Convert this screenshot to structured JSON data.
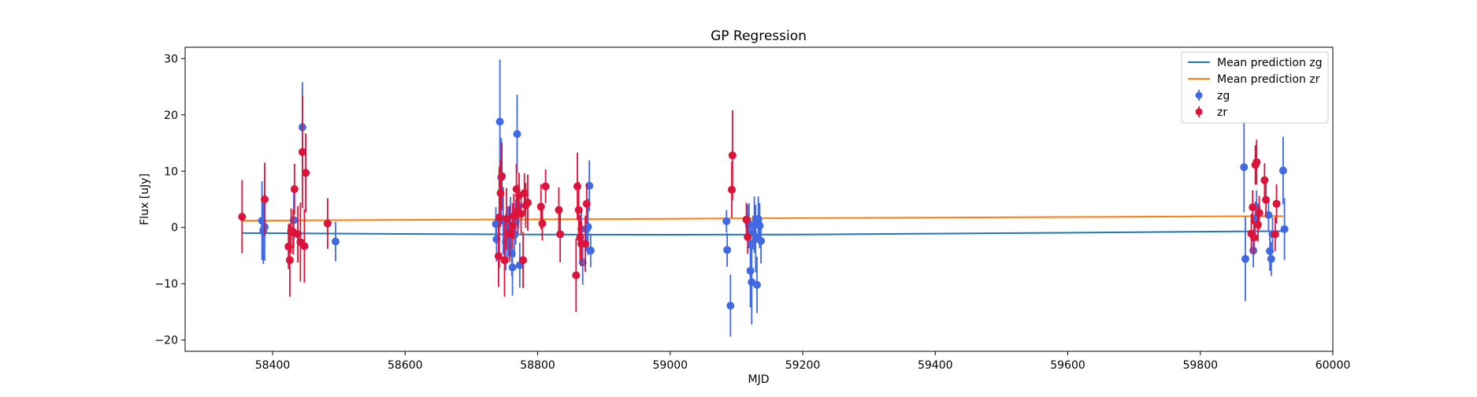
{
  "chart_data": {
    "type": "scatter",
    "title": "GP Regression",
    "xlabel": "MJD",
    "ylabel": "Flux [uJy]",
    "xlim": [
      58268,
      60000
    ],
    "ylim": [
      -22,
      32
    ],
    "xticks": [
      58400,
      58600,
      58800,
      59000,
      59200,
      59400,
      59600,
      59800,
      60000
    ],
    "yticks": [
      -20,
      -10,
      0,
      10,
      20,
      30
    ],
    "grid": false,
    "legend_position": "top-right",
    "lines": [
      {
        "name": "Mean prediction zg",
        "color": "#1f77b4",
        "x": [
          58354,
          58600,
          58800,
          59000,
          59200,
          59400,
          59600,
          59800,
          59925
        ],
        "y": [
          -1.0,
          -1.15,
          -1.25,
          -1.3,
          -1.25,
          -1.1,
          -0.95,
          -0.75,
          -0.65
        ]
      },
      {
        "name": "Mean prediction zr",
        "color": "#ff7f0e",
        "x": [
          58354,
          58600,
          58800,
          59000,
          59200,
          59400,
          59600,
          59800,
          59925
        ],
        "y": [
          1.2,
          1.35,
          1.45,
          1.55,
          1.65,
          1.75,
          1.85,
          1.95,
          2.0
        ]
      }
    ],
    "series": [
      {
        "name": "zg",
        "color": "#4169e1",
        "points": [
          [
            58384,
            1.2,
            7
          ],
          [
            58386,
            -0.5,
            6
          ],
          [
            58388,
            0.1,
            6
          ],
          [
            58432,
            1.3,
            5
          ],
          [
            58445,
            17.8,
            8
          ],
          [
            58495,
            -2.5,
            3.5
          ],
          [
            58737,
            0.6,
            3
          ],
          [
            58738,
            -2.1,
            4
          ],
          [
            58743,
            18.8,
            11
          ],
          [
            58745,
            8.9,
            7
          ],
          [
            58748,
            1.2,
            6
          ],
          [
            58752,
            -2.6,
            5
          ],
          [
            58755,
            -1.3,
            5
          ],
          [
            58757,
            -0.3,
            4
          ],
          [
            58759,
            0.4,
            5
          ],
          [
            58761,
            -4.6,
            4
          ],
          [
            58762,
            -7.1,
            5
          ],
          [
            58765,
            -1.3,
            4
          ],
          [
            58767,
            1.0,
            4
          ],
          [
            58769,
            16.6,
            7
          ],
          [
            58771,
            3.8,
            4
          ],
          [
            58773,
            -6.7,
            4
          ],
          [
            58866,
            -0.3,
            3
          ],
          [
            58868,
            -6.2,
            4
          ],
          [
            58874,
            -0.3,
            4
          ],
          [
            58876,
            0.1,
            5
          ],
          [
            58878,
            7.4,
            4.5
          ],
          [
            58880,
            -4.1,
            3
          ],
          [
            59085,
            1.1,
            2
          ],
          [
            59086,
            -4.0,
            3
          ],
          [
            59091,
            -13.9,
            5.5
          ],
          [
            59117,
            1.1,
            3
          ],
          [
            59119,
            0.3,
            4
          ],
          [
            59121,
            -7.7,
            6.5
          ],
          [
            59123,
            -9.7,
            7.5
          ],
          [
            59125,
            -0.9,
            3
          ],
          [
            59127,
            0.5,
            5
          ],
          [
            59129,
            -2.0,
            6
          ],
          [
            59131,
            -10.2,
            5
          ],
          [
            59133,
            1.5,
            4
          ],
          [
            59135,
            0.3,
            4
          ],
          [
            59137,
            -2.4,
            4
          ],
          [
            59866,
            10.7,
            8
          ],
          [
            59868,
            -5.6,
            7.5
          ],
          [
            59880,
            -4.1,
            3
          ],
          [
            59883,
            1.6,
            3
          ],
          [
            59885,
            3.6,
            3
          ],
          [
            59903,
            2.2,
            3
          ],
          [
            59905,
            -4.2,
            3.5
          ],
          [
            59907,
            -5.6,
            3
          ],
          [
            59909,
            -1.2,
            3
          ],
          [
            59925,
            10.1,
            6
          ],
          [
            59927,
            -0.3,
            5.5
          ]
        ]
      },
      {
        "name": "zr",
        "color": "#dc143c",
        "points": [
          [
            58354,
            1.9,
            6.5
          ],
          [
            58388,
            5.0,
            6.5
          ],
          [
            58424,
            -3.4,
            4
          ],
          [
            58426,
            -5.8,
            6.5
          ],
          [
            58428,
            -0.6,
            4
          ],
          [
            58431,
            -0.8,
            4
          ],
          [
            58433,
            6.8,
            4.5
          ],
          [
            58438,
            -1.2,
            5
          ],
          [
            58442,
            -2.6,
            7
          ],
          [
            58445,
            13.4,
            10
          ],
          [
            58448,
            -3.3,
            6.5
          ],
          [
            58450,
            9.7,
            7
          ],
          [
            58483,
            0.7,
            4.5
          ],
          [
            58741,
            -5.1,
            5.5
          ],
          [
            58742,
            1.8,
            9
          ],
          [
            58744,
            6.1,
            6
          ],
          [
            58746,
            9.1,
            6
          ],
          [
            58750,
            -5.8,
            6.5
          ],
          [
            58753,
            1.5,
            5.5
          ],
          [
            58758,
            -1.1,
            5
          ],
          [
            58762,
            0.3,
            4
          ],
          [
            58764,
            2.0,
            4
          ],
          [
            58768,
            6.8,
            4.5
          ],
          [
            58770,
            2.9,
            4
          ],
          [
            58772,
            5.7,
            4
          ],
          [
            58775,
            2.4,
            3.5
          ],
          [
            58778,
            -5.8,
            5
          ],
          [
            58780,
            6.1,
            3.5
          ],
          [
            58782,
            3.9,
            4
          ],
          [
            58785,
            4.4,
            5
          ],
          [
            58805,
            3.7,
            4
          ],
          [
            58807,
            0.7,
            3
          ],
          [
            58812,
            7.3,
            3
          ],
          [
            58832,
            3.1,
            4
          ],
          [
            58834,
            -1.2,
            5
          ],
          [
            58858,
            -8.5,
            6.5
          ],
          [
            58860,
            7.3,
            6
          ],
          [
            58862,
            3.1,
            5
          ],
          [
            58864,
            -1.8,
            4
          ],
          [
            58866,
            -2.9,
            4
          ],
          [
            58872,
            -2.9,
            5
          ],
          [
            58874,
            4.2,
            3.5
          ],
          [
            59093,
            6.7,
            5
          ],
          [
            59094,
            12.8,
            8
          ],
          [
            59115,
            1.4,
            3
          ],
          [
            59117,
            -1.7,
            3
          ],
          [
            59877,
            -1.1,
            3.5
          ],
          [
            59879,
            3.6,
            3
          ],
          [
            59881,
            -1.8,
            3
          ],
          [
            59883,
            11.1,
            3.5
          ],
          [
            59885,
            11.6,
            4
          ],
          [
            59887,
            0.5,
            3
          ],
          [
            59889,
            2.6,
            3
          ],
          [
            59897,
            8.4,
            3
          ],
          [
            59899,
            4.9,
            3
          ],
          [
            59913,
            -1.2,
            3
          ],
          [
            59915,
            4.2,
            3.5
          ]
        ]
      }
    ]
  }
}
